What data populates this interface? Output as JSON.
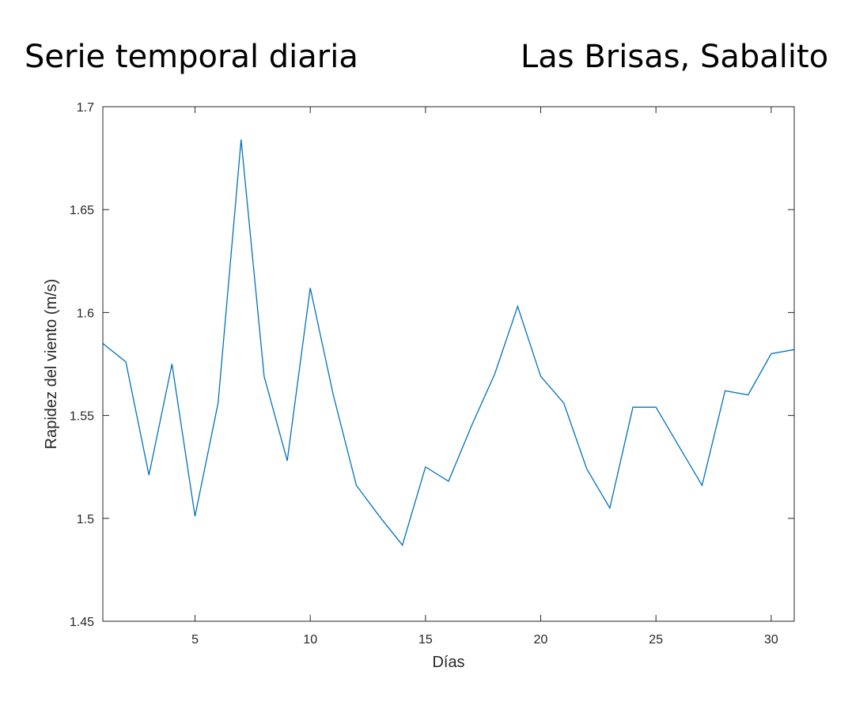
{
  "figure": {
    "title_left": "Serie temporal diaria",
    "title_right": "Las Brisas, Sabalito"
  },
  "colors": {
    "line": "#0072BD",
    "axes": "#262626",
    "background": "#ffffff"
  },
  "chart_data": {
    "type": "line",
    "xlabel": "Días",
    "ylabel": "Rapidez del viento (m/s)",
    "xlim": [
      1,
      31
    ],
    "ylim": [
      1.45,
      1.7
    ],
    "xticks": [
      5,
      10,
      15,
      20,
      25,
      30
    ],
    "yticks": [
      1.45,
      1.5,
      1.55,
      1.6,
      1.65,
      1.7
    ],
    "xtick_labels": [
      "5",
      "10",
      "15",
      "20",
      "25",
      "30"
    ],
    "ytick_labels": [
      "1.45",
      "1.5",
      "1.55",
      "1.6",
      "1.65",
      "1.7"
    ],
    "grid": false,
    "series": [
      {
        "x": [
          1,
          2,
          3,
          4,
          5,
          6,
          7,
          8,
          9,
          10,
          11,
          12,
          13,
          14,
          15,
          16,
          17,
          18,
          19,
          20,
          21,
          22,
          23,
          24,
          25,
          26,
          27,
          28,
          29,
          30,
          31
        ],
        "values": [
          1.585,
          1.576,
          1.521,
          1.575,
          1.501,
          1.556,
          1.684,
          1.569,
          1.528,
          1.612,
          1.56,
          1.516,
          1.501,
          1.487,
          1.525,
          1.518,
          1.545,
          1.57,
          1.603,
          1.569,
          1.556,
          1.524,
          1.505,
          1.554,
          1.554,
          1.535,
          1.516,
          1.562,
          1.56,
          1.58,
          1.582
        ]
      }
    ]
  }
}
